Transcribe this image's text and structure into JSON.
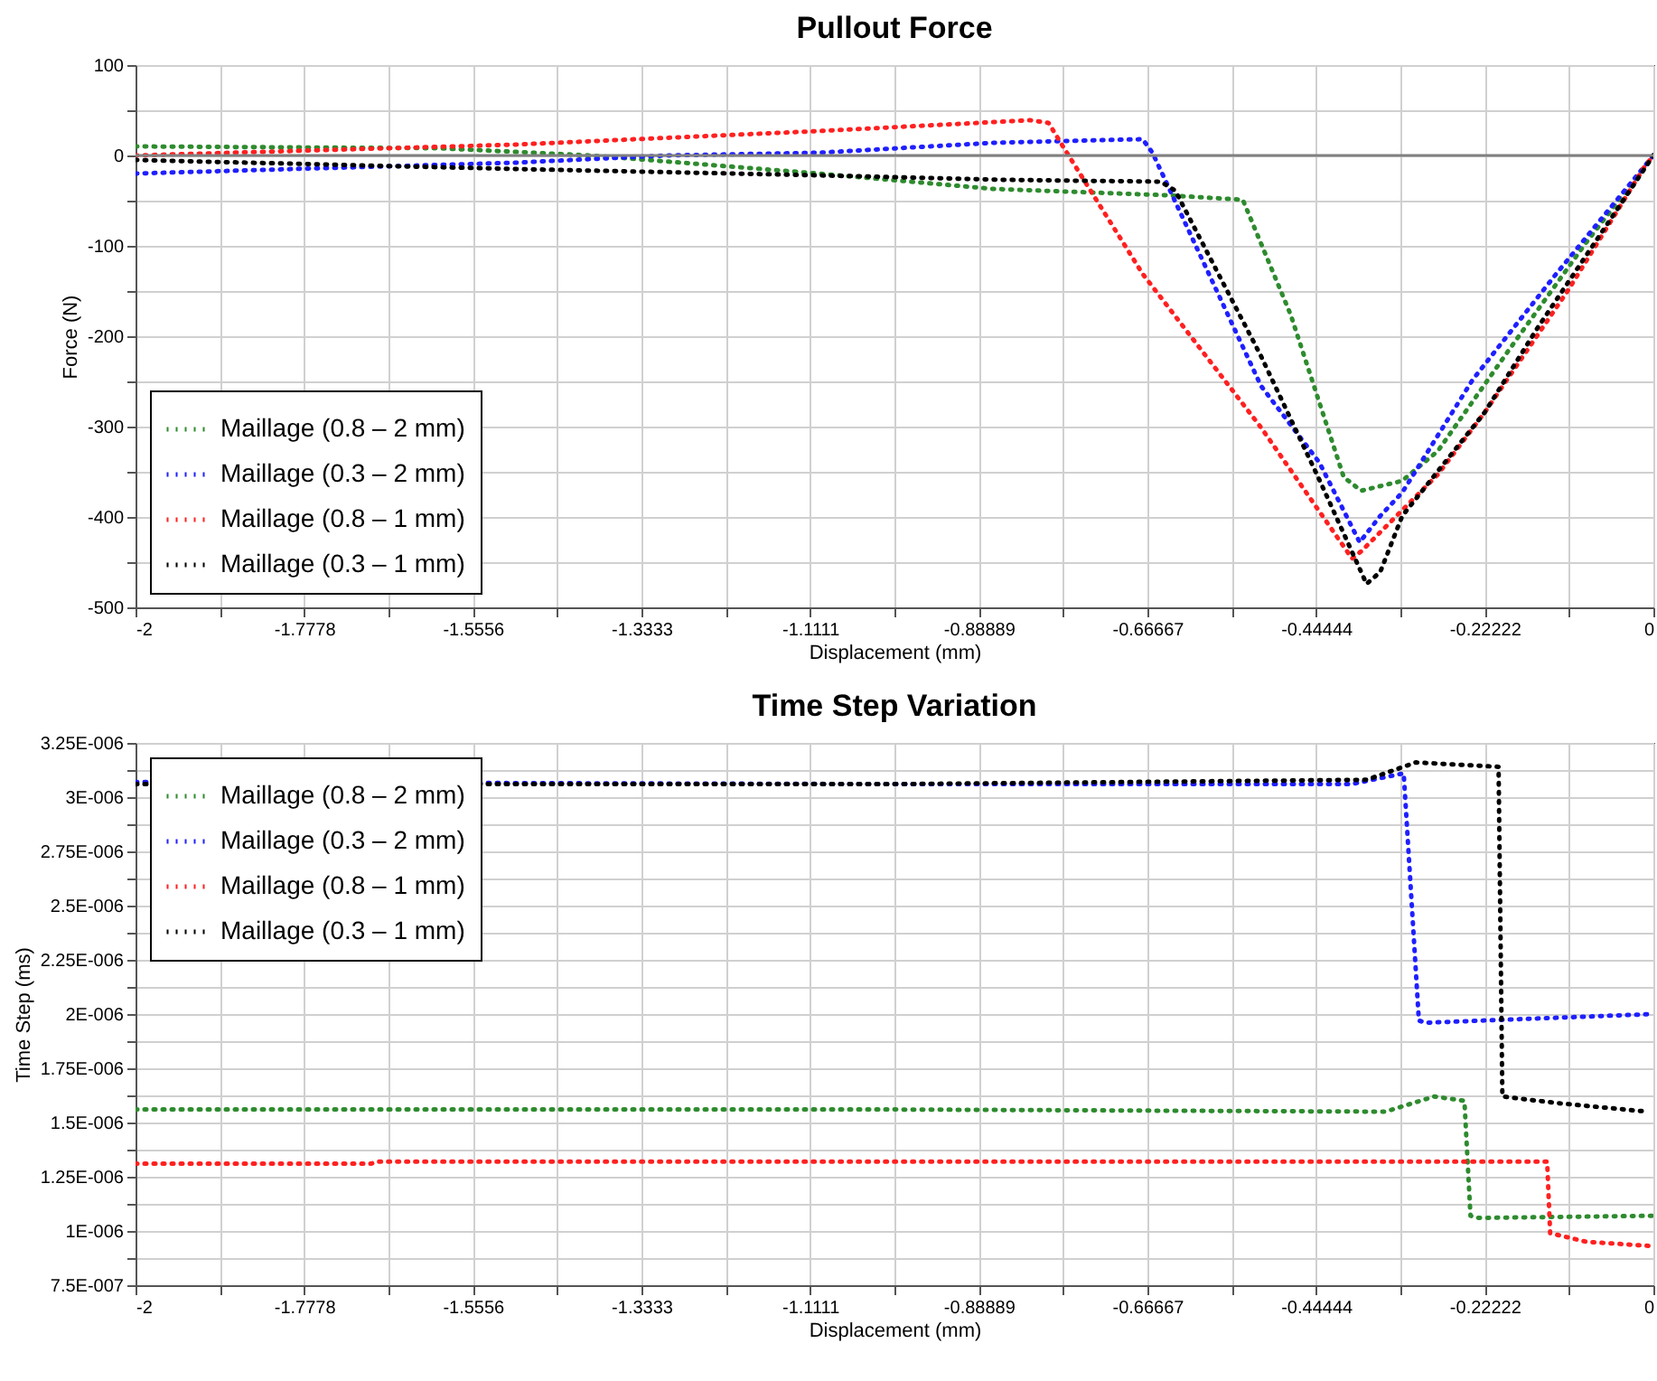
{
  "chart_data": [
    {
      "type": "line",
      "title": "Pullout Force",
      "xlabel": "Displacement (mm)",
      "ylabel": "Force (N)",
      "line_style": "dotted",
      "grid": true,
      "legend": "bottom left",
      "xlim": [
        -2,
        0
      ],
      "ylim": [
        -500,
        100
      ],
      "xticks": [
        -2,
        {
          "value": -1.8889,
          "label": null
        },
        -1.7778,
        {
          "value": -1.6667,
          "label": null
        },
        -1.5556,
        {
          "value": -1.4444,
          "label": null
        },
        -1.3333,
        {
          "value": -1.2222,
          "label": null
        },
        -1.1111,
        {
          "value": -1,
          "label": null
        },
        -0.88889,
        {
          "value": -0.77778,
          "label": null
        },
        -0.66667,
        {
          "value": -0.55556,
          "label": null
        },
        -0.44444,
        {
          "value": -0.33333,
          "label": null
        },
        -0.22222,
        {
          "value": -0.11111,
          "label": null
        },
        0
      ],
      "yticks": [
        -500,
        {
          "value": -450,
          "label": null
        },
        -400,
        {
          "value": -350,
          "label": null
        },
        -300,
        {
          "value": -250,
          "label": null
        },
        -200,
        {
          "value": -150,
          "label": null
        },
        -100,
        {
          "value": -50,
          "label": null
        },
        0,
        {
          "value": 50,
          "label": null
        },
        100
      ],
      "ref_lines": [
        {
          "axis": "y",
          "value": 0,
          "color": "#808080"
        }
      ],
      "series": [
        {
          "name": "Maillage (0.8 – 2 mm)",
          "color": "#2e8b2e",
          "x": [
            -2,
            -1.6,
            -1.4,
            -1.1,
            -0.87,
            -0.642,
            -0.541,
            -0.478,
            -0.408,
            -0.385,
            -0.331,
            -0.284,
            -0.191,
            -0.09,
            0
          ],
          "values": [
            10,
            8,
            0,
            -20,
            -37,
            -44,
            -49,
            -176,
            -356,
            -371,
            -360,
            -327,
            -216,
            -98,
            0
          ]
        },
        {
          "name": "Maillage (0.3 – 2 mm)",
          "color": "#1f1fff",
          "x": [
            -2,
            -1.5,
            -1.3,
            -1.1,
            -0.87,
            -0.673,
            -0.66,
            -0.517,
            -0.44,
            -0.387,
            -0.36,
            -0.331,
            -0.238,
            -0.128,
            0
          ],
          "values": [
            -20,
            -8,
            0,
            3,
            14,
            18,
            3,
            -255,
            -340,
            -428,
            -399,
            -373,
            -248,
            -131,
            0
          ]
        },
        {
          "name": "Maillage (0.8 – 1 mm)",
          "color": "#ff2020",
          "x": [
            -2,
            -1.5,
            -1.1,
            -0.821,
            -0.797,
            -0.778,
            -0.673,
            -0.517,
            -0.397,
            -0.385,
            -0.284,
            -0.222,
            -0.113,
            -0.012,
            0
          ],
          "values": [
            0,
            12,
            27,
            39,
            36,
            10,
            -131,
            -301,
            -446,
            -438,
            -353,
            -284,
            -150,
            -13,
            0
          ]
        },
        {
          "name": "Maillage (0.3 – 1 mm)",
          "color": "#000000",
          "x": [
            -2,
            -1.5,
            -1.1,
            -0.855,
            -0.649,
            -0.63,
            -0.517,
            -0.44,
            -0.378,
            -0.36,
            -0.331,
            -0.222,
            -0.152,
            0
          ],
          "values": [
            -5,
            -15,
            -22,
            -27,
            -29,
            -39,
            -222,
            -359,
            -474,
            -461,
            -399,
            -284,
            -190,
            0
          ]
        }
      ]
    },
    {
      "type": "line",
      "title": "Time Step Variation",
      "xlabel": "Displacement (mm)",
      "ylabel": "Time Step (ms)",
      "line_style": "dotted",
      "grid": true,
      "legend": "top left",
      "xlim": [
        -2,
        0
      ],
      "ylim": [
        7.5e-07,
        3.25e-06
      ],
      "xticks": [
        -2,
        {
          "value": -1.8889,
          "label": null
        },
        -1.7778,
        {
          "value": -1.6667,
          "label": null
        },
        -1.5556,
        {
          "value": -1.4444,
          "label": null
        },
        -1.3333,
        {
          "value": -1.2222,
          "label": null
        },
        -1.1111,
        {
          "value": -1,
          "label": null
        },
        -0.88889,
        {
          "value": -0.77778,
          "label": null
        },
        -0.66667,
        {
          "value": -0.55556,
          "label": null
        },
        -0.44444,
        {
          "value": -0.33333,
          "label": null
        },
        -0.22222,
        {
          "value": -0.11111,
          "label": null
        },
        0
      ],
      "yticks": [
        {
          "value": 7.5e-07,
          "label": "7.5E-007"
        },
        {
          "value": 8.75e-07,
          "label": null
        },
        {
          "value": 1e-06,
          "label": "1E-006"
        },
        {
          "value": 1.125e-06,
          "label": null
        },
        {
          "value": 1.25e-06,
          "label": "1.25E-006"
        },
        {
          "value": 1.375e-06,
          "label": null
        },
        {
          "value": 1.5e-06,
          "label": "1.5E-006"
        },
        {
          "value": 1.625e-06,
          "label": null
        },
        {
          "value": 1.75e-06,
          "label": "1.75E-006"
        },
        {
          "value": 1.875e-06,
          "label": null
        },
        {
          "value": 2e-06,
          "label": "2E-006"
        },
        {
          "value": 2.125e-06,
          "label": null
        },
        {
          "value": 2.25e-06,
          "label": "2.25E-006"
        },
        {
          "value": 2.375e-06,
          "label": null
        },
        {
          "value": 2.5e-06,
          "label": "2.5E-006"
        },
        {
          "value": 2.625e-06,
          "label": null
        },
        {
          "value": 2.75e-06,
          "label": "2.75E-006"
        },
        {
          "value": 2.875e-06,
          "label": null
        },
        {
          "value": 3e-06,
          "label": "3E-006"
        },
        {
          "value": 3.125e-06,
          "label": null
        },
        {
          "value": 3.25e-06,
          "label": "3.25E-006"
        }
      ],
      "series": [
        {
          "name": "Maillage (0.8 – 2 mm)",
          "color": "#2e8b2e",
          "x": [
            -2,
            -1,
            -0.353,
            -0.289,
            -0.249,
            -0.241,
            -0.23,
            0
          ],
          "values": [
            1.56e-06,
            1.56e-06,
            1.55e-06,
            1.62e-06,
            1.6e-06,
            1.07e-06,
            1.06e-06,
            1.07e-06
          ]
        },
        {
          "name": "Maillage (0.3 – 2 mm)",
          "color": "#1f1fff",
          "x": [
            -2,
            -1,
            -0.398,
            -0.329,
            -0.309,
            -0.3,
            0
          ],
          "values": [
            3.07e-06,
            3.06e-06,
            3.06e-06,
            3.11e-06,
            1.97e-06,
            1.96e-06,
            2e-06
          ]
        },
        {
          "name": "Maillage (0.8 – 1 mm)",
          "color": "#ff2020",
          "x": [
            -2,
            -1.69,
            -1.68,
            -0.14,
            -0.136,
            -0.088,
            0
          ],
          "values": [
            1.31e-06,
            1.31e-06,
            1.32e-06,
            1.32e-06,
            9.9e-07,
            9.5e-07,
            9.3e-07
          ]
        },
        {
          "name": "Maillage (0.3 – 1 mm)",
          "color": "#000000",
          "x": [
            -2,
            -1,
            -0.378,
            -0.313,
            -0.204,
            -0.199,
            -0.128,
            -0.007
          ],
          "values": [
            3.06e-06,
            3.06e-06,
            3.08e-06,
            3.16e-06,
            3.14e-06,
            1.62e-06,
            1.59e-06,
            1.55e-06
          ]
        }
      ]
    }
  ]
}
